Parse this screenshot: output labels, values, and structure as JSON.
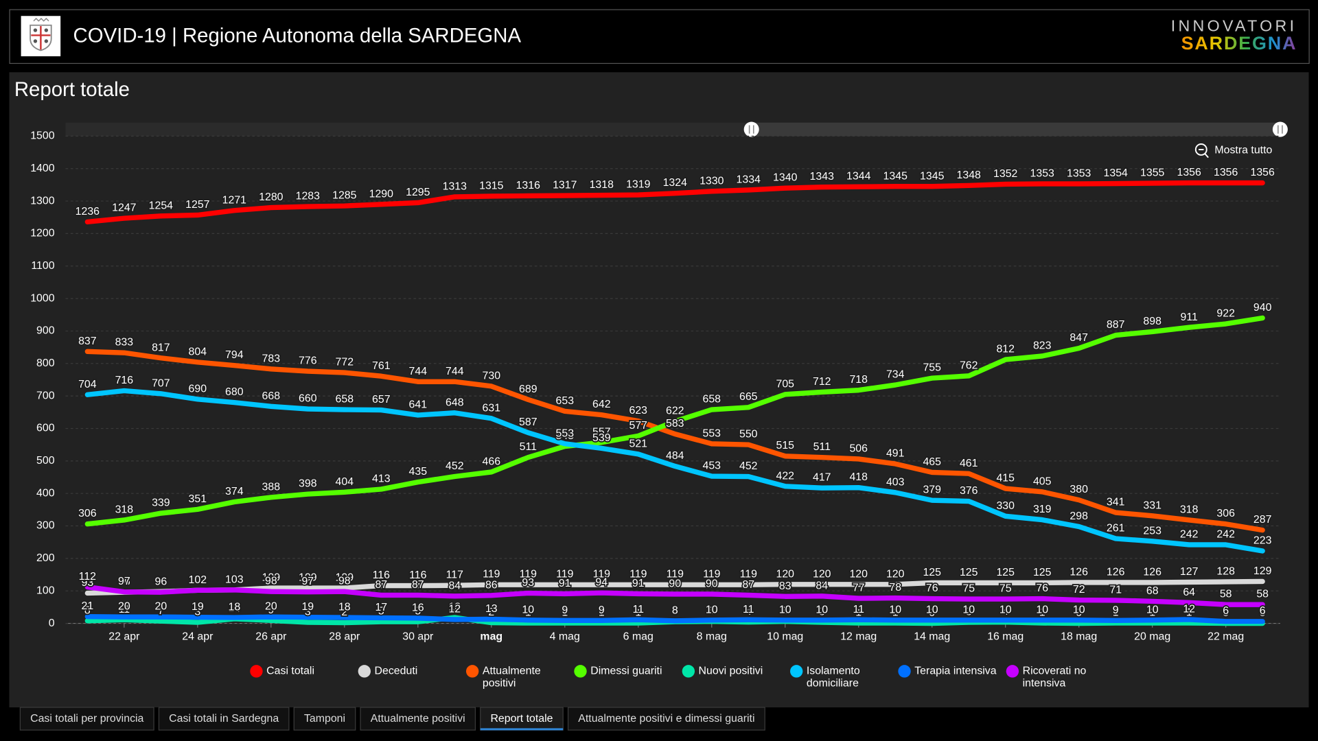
{
  "header": {
    "title": "COVID-19 | Regione Autonoma della SARDEGNA",
    "brand_top": "INNOVATORI",
    "brand_bottom": "SARDEGNA"
  },
  "panel": {
    "title": "Report totale",
    "reset_zoom": "Mostra tutto"
  },
  "chart_data": {
    "type": "line",
    "categories": [
      null,
      "22 apr",
      null,
      "24 apr",
      null,
      "26 apr",
      null,
      "28 apr",
      null,
      "30 apr",
      null,
      "mag",
      null,
      "4 mag",
      null,
      "6 mag",
      null,
      "8 mag",
      null,
      "10 mag",
      null,
      "12 mag",
      null,
      "14 mag",
      null,
      "16 mag",
      null,
      "18 mag",
      null,
      "20 mag",
      null,
      "22 mag",
      null
    ],
    "ylim": [
      0,
      1500
    ],
    "yticks": [
      0,
      100,
      200,
      300,
      400,
      500,
      600,
      700,
      800,
      900,
      1000,
      1100,
      1200,
      1300,
      1400,
      1500
    ],
    "grid": true,
    "legend": "bottom",
    "series": [
      {
        "name": "Casi totali",
        "color": "#ff0000",
        "values": [
          1236,
          1247,
          1254,
          1257,
          1271,
          1280,
          1283,
          1285,
          1290,
          1295,
          1313,
          1315,
          1316,
          1317,
          1318,
          1319,
          1324,
          1330,
          1334,
          1340,
          1343,
          1344,
          1345,
          1345,
          1348,
          1352,
          1353,
          1353,
          1354,
          1355,
          1356,
          1356,
          1356
        ]
      },
      {
        "name": "Deceduti",
        "color": "#d9d9d9",
        "values": [
          93,
          96,
          98,
          102,
          103,
          109,
          109,
          109,
          116,
          116,
          117,
          119,
          119,
          119,
          119,
          119,
          119,
          119,
          119,
          120,
          120,
          120,
          120,
          125,
          125,
          125,
          125,
          126,
          126,
          126,
          127,
          128,
          129
        ]
      },
      {
        "name": "Attualmente positivi",
        "color": "#ff5500",
        "values": [
          837,
          833,
          817,
          804,
          794,
          783,
          776,
          772,
          761,
          744,
          744,
          730,
          689,
          653,
          642,
          623,
          583,
          553,
          550,
          515,
          511,
          506,
          491,
          465,
          461,
          415,
          405,
          380,
          341,
          331,
          318,
          306,
          287
        ]
      },
      {
        "name": "Dimessi guariti",
        "color": "#55ff00",
        "values": [
          306,
          318,
          339,
          351,
          374,
          388,
          398,
          404,
          413,
          435,
          452,
          466,
          511,
          545,
          557,
          577,
          622,
          658,
          665,
          705,
          712,
          718,
          734,
          755,
          762,
          812,
          823,
          847,
          887,
          898,
          911,
          922,
          940
        ]
      },
      {
        "name": "Nuovi positivi",
        "color": "#00e6a8",
        "values": [
          8,
          11,
          7,
          3,
          14,
          9,
          3,
          2,
          5,
          5,
          18,
          2,
          1,
          1,
          1,
          1,
          5,
          6,
          4,
          6,
          3,
          1,
          1,
          0,
          3,
          4,
          1,
          0,
          1,
          1,
          1,
          0,
          0
        ]
      },
      {
        "name": "Isolamento domiciliare",
        "color": "#00c5ff",
        "values": [
          704,
          716,
          707,
          690,
          680,
          668,
          660,
          658,
          657,
          641,
          648,
          631,
          587,
          553,
          539,
          521,
          484,
          453,
          452,
          422,
          417,
          418,
          403,
          379,
          376,
          330,
          319,
          298,
          261,
          253,
          242,
          242,
          223
        ]
      },
      {
        "name": "Terapia intensiva",
        "color": "#0070ff",
        "values": [
          21,
          20,
          20,
          19,
          18,
          20,
          19,
          18,
          17,
          16,
          12,
          13,
          10,
          9,
          9,
          11,
          8,
          10,
          11,
          10,
          10,
          11,
          10,
          10,
          10,
          10,
          10,
          10,
          9,
          10,
          12,
          6,
          6
        ]
      },
      {
        "name": "Ricoverati no intensiva",
        "color": "#c500ff",
        "values": [
          112,
          97,
          96,
          102,
          103,
          98,
          97,
          98,
          87,
          87,
          84,
          86,
          93,
          91,
          94,
          91,
          90,
          90,
          87,
          83,
          84,
          77,
          78,
          76,
          75,
          75,
          76,
          72,
          71,
          68,
          64,
          58,
          58
        ]
      }
    ]
  },
  "tabs": [
    "Casi totali per provincia",
    "Casi totali in Sardegna",
    "Tamponi",
    "Attualmente positivi",
    "Report totale",
    "Attualmente positivi e dimessi guariti"
  ],
  "active_tab": 4
}
